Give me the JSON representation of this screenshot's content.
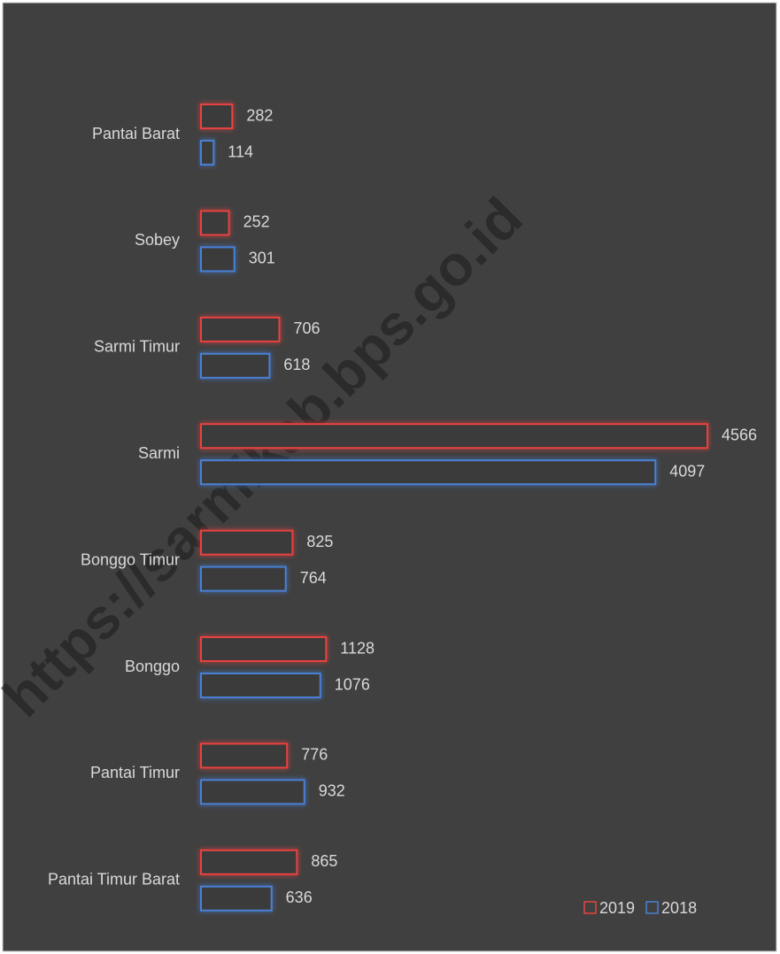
{
  "chart_data": {
    "type": "bar",
    "orientation": "horizontal",
    "categories": [
      "Pantai Barat",
      "Sobey",
      "Sarmi Timur",
      "Sarmi",
      "Bonggo Timur",
      "Bonggo",
      "Pantai Timur",
      "Pantai Timur Barat"
    ],
    "series": [
      {
        "name": "2019",
        "color": "#e8423f",
        "values": [
          282,
          252,
          706,
          4566,
          825,
          1128,
          776,
          865
        ]
      },
      {
        "name": "2018",
        "color": "#4a80d4",
        "values": [
          114,
          301,
          618,
          4097,
          764,
          1076,
          932,
          636
        ]
      }
    ],
    "legend": "bottom-right",
    "watermark": "https://sarmikab.bps.go.id"
  }
}
